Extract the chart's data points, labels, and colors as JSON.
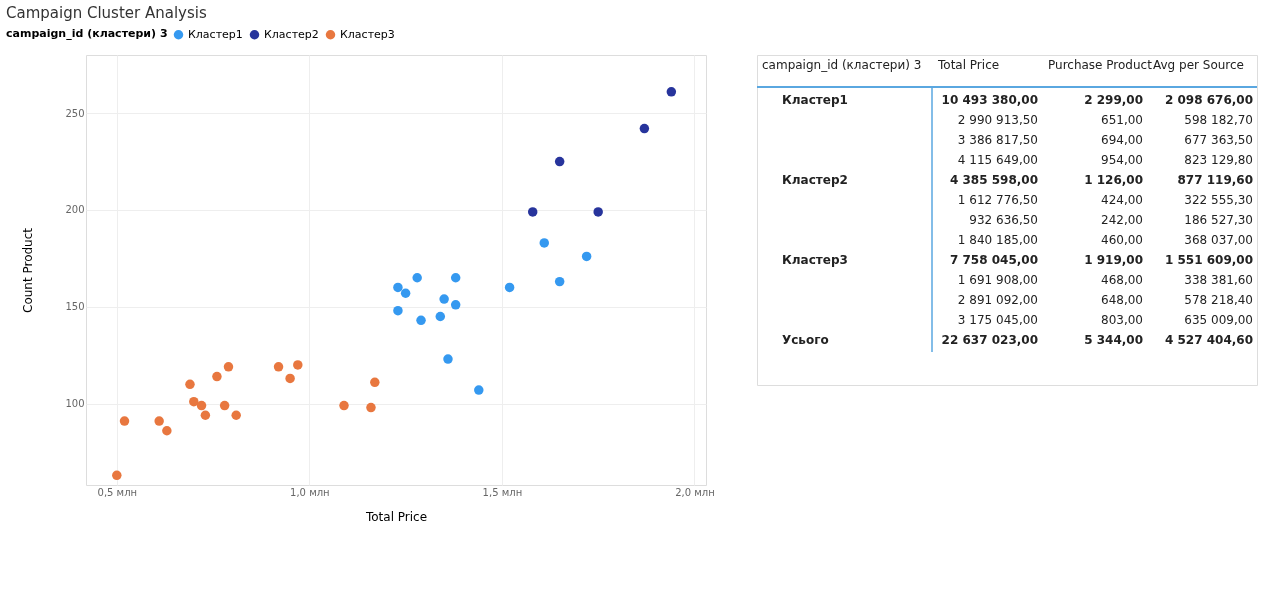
{
  "chart_data": [
    {
      "type": "scatter",
      "title": "Campaign Cluster Analysis",
      "xlabel": "Total Price",
      "ylabel": "Count Product",
      "legend_title": "campaign_id (кластери) 3",
      "legend": "top left",
      "grid": true,
      "marker": "circle",
      "xlim": [
        0.42,
        2.03
      ],
      "ylim": [
        58,
        280
      ],
      "xticks": [
        {
          "value": 0.5,
          "label": "0,5 млн"
        },
        {
          "value": 1.0,
          "label": "1,0 млн"
        },
        {
          "value": 1.5,
          "label": "1,5 млн"
        },
        {
          "value": 2.0,
          "label": "2,0 млн"
        }
      ],
      "yticks": [
        100,
        150,
        200,
        250
      ],
      "series": [
        {
          "name": "Кластер1",
          "color": "#3599f0",
          "x": [
            1.23,
            1.25,
            1.28,
            1.38,
            1.35,
            1.38,
            1.23,
            1.29,
            1.34,
            1.36,
            1.44,
            1.52,
            1.61,
            1.65,
            1.72
          ],
          "values": [
            160,
            157,
            165,
            165,
            154,
            151,
            148,
            143,
            145,
            123,
            107,
            160,
            183,
            163,
            176
          ]
        },
        {
          "name": "Кластер2",
          "color": "#27349c",
          "x": [
            1.58,
            1.75,
            1.65,
            1.87,
            1.94
          ],
          "values": [
            199,
            199,
            225,
            242,
            261
          ]
        },
        {
          "name": "Кластер3",
          "color": "#e8773f",
          "x": [
            0.5,
            0.52,
            0.61,
            0.63,
            0.69,
            0.7,
            0.72,
            0.73,
            0.76,
            0.78,
            0.79,
            0.81,
            0.92,
            0.95,
            0.97,
            1.09,
            1.16,
            1.17
          ],
          "values": [
            63,
            91,
            91,
            86,
            110,
            101,
            99,
            94,
            114,
            99,
            119,
            94,
            119,
            113,
            120,
            99,
            98,
            111
          ]
        }
      ]
    },
    {
      "type": "other",
      "ylabel": "campaign_id (кластери) 3",
      "categories": [
        "Кластер1",
        "Кластер2",
        "Кластер3",
        "Усього"
      ],
      "series": [
        {
          "name": "Total Price",
          "values": [
            10493380.0,
            4385598.0,
            7758045.0,
            22637023.0
          ],
          "value_labels": [
            "10 493 380,00",
            "4 385 598,00",
            "7 758 045,00",
            "22 637 023,00"
          ]
        },
        {
          "name": "Purchase Product",
          "values": [
            2299.0,
            1126.0,
            1919.0,
            5344.0
          ],
          "value_labels": [
            "2 299,00",
            "1 126,00",
            "1 919,00",
            "5 344,00"
          ]
        },
        {
          "name": "Avg per Source",
          "values": [
            2098676.0,
            877119.6,
            1551609.0,
            4527404.6
          ],
          "value_labels": [
            "2 098 676,00",
            "877 119,60",
            "1 551 609,00",
            "4 527 404,60"
          ]
        }
      ],
      "annotations": [
        "2 990 913,50",
        "651,00",
        "598 182,70",
        "3 386 817,50",
        "694,00",
        "677 363,50",
        "4 115 649,00",
        "954,00",
        "823 129,80",
        "1 612 776,50",
        "424,00",
        "322 555,30",
        "932 636,50",
        "242,00",
        "186 527,30",
        "1 840 185,00",
        "460,00",
        "368 037,00",
        "1 691 908,00",
        "468,00",
        "338 381,60",
        "2 891 092,00",
        "648,00",
        "578 218,40",
        "3 175 045,00",
        "803,00",
        "635 009,00"
      ]
    }
  ]
}
